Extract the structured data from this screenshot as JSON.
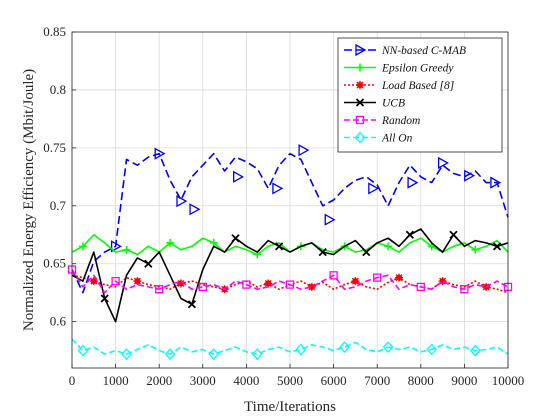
{
  "chart_data": {
    "type": "line",
    "xlabel": "Time/Iterations",
    "ylabel": "Normalized Energy Efficiency (Mbit/Joule)",
    "xlim": [
      0,
      10000
    ],
    "ylim": [
      0.56,
      0.85
    ],
    "x_ticks": [
      0,
      1000,
      2000,
      3000,
      4000,
      5000,
      6000,
      7000,
      8000,
      9000,
      10000
    ],
    "x_tick_labels": [
      "0",
      "1000",
      "2000",
      "3000",
      "4000",
      "5000",
      "6000",
      "7000",
      "8000",
      "9000",
      "10000"
    ],
    "y_ticks": [
      0.6,
      0.65,
      0.7,
      0.75,
      0.8,
      0.85
    ],
    "y_tick_labels": [
      "0.6",
      "0.65",
      "0.7",
      "0.75",
      "0.8",
      "0.85"
    ],
    "grid": true,
    "legend_position": "top-right",
    "series": [
      {
        "name": "NN-based C-MAB",
        "color": "#0000ff",
        "dash": "8,4",
        "marker": "triangle-right",
        "x": [
          0,
          250,
          500,
          750,
          1000,
          1250,
          1500,
          1750,
          2000,
          2250,
          2500,
          2750,
          3000,
          3250,
          3500,
          3750,
          4000,
          4250,
          4500,
          4750,
          5000,
          5250,
          5500,
          5750,
          6000,
          6250,
          6500,
          6750,
          7000,
          7250,
          7500,
          7750,
          8000,
          8250,
          8500,
          8750,
          9000,
          9250,
          9500,
          9750,
          10000
        ],
        "values": [
          0.645,
          0.625,
          0.652,
          0.66,
          0.665,
          0.74,
          0.735,
          0.742,
          0.745,
          0.722,
          0.705,
          0.725,
          0.735,
          0.745,
          0.73,
          0.742,
          0.738,
          0.732,
          0.715,
          0.735,
          0.745,
          0.74,
          0.72,
          0.7,
          0.705,
          0.715,
          0.722,
          0.725,
          0.718,
          0.7,
          0.72,
          0.735,
          0.725,
          0.72,
          0.735,
          0.728,
          0.725,
          0.73,
          0.72,
          0.72,
          0.69
        ],
        "marker_x": [
          1000,
          2000,
          2500,
          2800,
          3800,
          4700,
          5300,
          5900,
          6900,
          7800,
          8500,
          9100,
          9700
        ],
        "marker_values": [
          0.665,
          0.745,
          0.704,
          0.697,
          0.725,
          0.715,
          0.748,
          0.688,
          0.715,
          0.72,
          0.737,
          0.726,
          0.72
        ]
      },
      {
        "name": "Epsilon Greedy",
        "color": "#00ff00",
        "dash": "",
        "marker": "plus",
        "x": [
          0,
          250,
          500,
          750,
          1000,
          1250,
          1500,
          1750,
          2000,
          2250,
          2500,
          2750,
          3000,
          3250,
          3500,
          3750,
          4000,
          4250,
          4500,
          4750,
          5000,
          5250,
          5500,
          5750,
          6000,
          6250,
          6500,
          6750,
          7000,
          7250,
          7500,
          7750,
          8000,
          8250,
          8500,
          8750,
          9000,
          9250,
          9500,
          9750,
          10000
        ],
        "values": [
          0.66,
          0.665,
          0.675,
          0.668,
          0.66,
          0.662,
          0.658,
          0.665,
          0.66,
          0.668,
          0.662,
          0.665,
          0.672,
          0.668,
          0.66,
          0.665,
          0.662,
          0.658,
          0.665,
          0.668,
          0.66,
          0.665,
          0.668,
          0.662,
          0.66,
          0.665,
          0.66,
          0.662,
          0.668,
          0.665,
          0.66,
          0.668,
          0.672,
          0.665,
          0.66,
          0.665,
          0.668,
          0.662,
          0.665,
          0.67,
          0.66
        ]
      },
      {
        "name": "Load Based [8]",
        "color": "#ff0000",
        "dash": "2,2",
        "marker": "star",
        "x": [
          0,
          250,
          500,
          750,
          1000,
          1250,
          1500,
          1750,
          2000,
          2250,
          2500,
          2750,
          3000,
          3250,
          3500,
          3750,
          4000,
          4250,
          4500,
          4750,
          5000,
          5250,
          5500,
          5750,
          6000,
          6250,
          6500,
          6750,
          7000,
          7250,
          7500,
          7750,
          8000,
          8250,
          8500,
          8750,
          9000,
          9250,
          9500,
          9750,
          10000
        ],
        "values": [
          0.64,
          0.638,
          0.635,
          0.632,
          0.63,
          0.638,
          0.635,
          0.632,
          0.63,
          0.628,
          0.633,
          0.635,
          0.632,
          0.63,
          0.628,
          0.632,
          0.635,
          0.63,
          0.633,
          0.628,
          0.632,
          0.635,
          0.63,
          0.634,
          0.628,
          0.632,
          0.635,
          0.63,
          0.628,
          0.634,
          0.638,
          0.632,
          0.63,
          0.628,
          0.635,
          0.632,
          0.63,
          0.635,
          0.63,
          0.628,
          0.625
        ]
      },
      {
        "name": "UCB",
        "color": "#000000",
        "dash": "",
        "marker": "x",
        "x": [
          0,
          250,
          500,
          750,
          1000,
          1250,
          1500,
          1750,
          2000,
          2250,
          2500,
          2750,
          3000,
          3250,
          3500,
          3750,
          4000,
          4250,
          4500,
          4750,
          5000,
          5250,
          5500,
          5750,
          6000,
          6250,
          6500,
          6750,
          7000,
          7250,
          7500,
          7750,
          8000,
          8250,
          8500,
          8750,
          9000,
          9250,
          9500,
          9750,
          10000
        ],
        "values": [
          0.64,
          0.635,
          0.66,
          0.62,
          0.6,
          0.64,
          0.655,
          0.65,
          0.66,
          0.64,
          0.62,
          0.615,
          0.645,
          0.665,
          0.66,
          0.672,
          0.665,
          0.66,
          0.67,
          0.665,
          0.66,
          0.665,
          0.668,
          0.66,
          0.658,
          0.665,
          0.67,
          0.66,
          0.668,
          0.672,
          0.665,
          0.675,
          0.68,
          0.668,
          0.66,
          0.675,
          0.665,
          0.67,
          0.668,
          0.665,
          0.668
        ]
      },
      {
        "name": "Random",
        "color": "#ff00ff",
        "dash": "6,3",
        "marker": "square",
        "x": [
          0,
          250,
          500,
          750,
          1000,
          1250,
          1500,
          1750,
          2000,
          2250,
          2500,
          2750,
          3000,
          3250,
          3500,
          3750,
          4000,
          4250,
          4500,
          4750,
          5000,
          5250,
          5500,
          5750,
          6000,
          6250,
          6500,
          6750,
          7000,
          7250,
          7500,
          7750,
          8000,
          8250,
          8500,
          8750,
          9000,
          9250,
          9500,
          9750,
          10000
        ],
        "values": [
          0.645,
          0.63,
          0.64,
          0.625,
          0.635,
          0.628,
          0.632,
          0.63,
          0.628,
          0.632,
          0.635,
          0.628,
          0.63,
          0.632,
          0.628,
          0.635,
          0.632,
          0.628,
          0.63,
          0.635,
          0.632,
          0.628,
          0.63,
          0.635,
          0.64,
          0.628,
          0.63,
          0.635,
          0.638,
          0.64,
          0.628,
          0.632,
          0.63,
          0.628,
          0.635,
          0.63,
          0.628,
          0.632,
          0.63,
          0.635,
          0.63
        ]
      },
      {
        "name": "All On",
        "color": "#00ffff",
        "dash": "6,3",
        "marker": "diamond",
        "x": [
          0,
          250,
          500,
          750,
          1000,
          1250,
          1500,
          1750,
          2000,
          2250,
          2500,
          2750,
          3000,
          3250,
          3500,
          3750,
          4000,
          4250,
          4500,
          4750,
          5000,
          5250,
          5500,
          5750,
          6000,
          6250,
          6500,
          6750,
          7000,
          7250,
          7500,
          7750,
          8000,
          8250,
          8500,
          8750,
          9000,
          9250,
          9500,
          9750,
          10000
        ],
        "values": [
          0.585,
          0.575,
          0.578,
          0.572,
          0.575,
          0.572,
          0.576,
          0.58,
          0.575,
          0.572,
          0.578,
          0.574,
          0.576,
          0.572,
          0.575,
          0.578,
          0.574,
          0.572,
          0.576,
          0.578,
          0.574,
          0.576,
          0.58,
          0.578,
          0.575,
          0.578,
          0.582,
          0.576,
          0.574,
          0.578,
          0.576,
          0.578,
          0.574,
          0.576,
          0.58,
          0.576,
          0.578,
          0.575,
          0.576,
          0.578,
          0.572
        ]
      }
    ]
  }
}
